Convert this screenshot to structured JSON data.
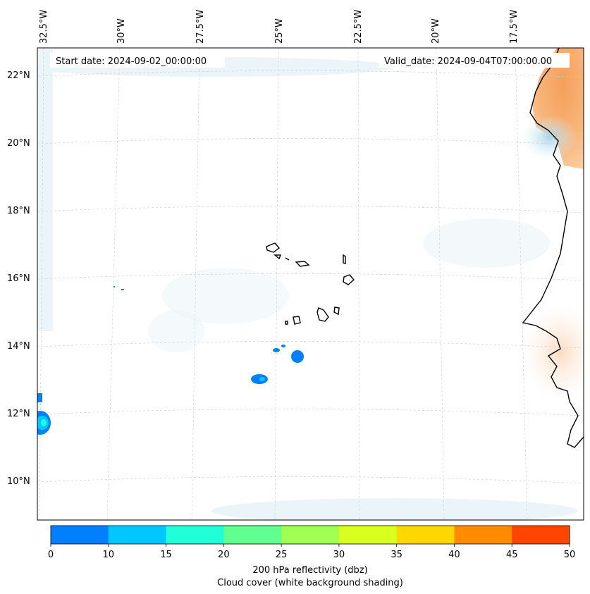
{
  "header": {
    "start_date": "Start date: 2024-09-02_00:00:00",
    "valid_date": "Valid_date: 2024-09-04T07:00:00.00"
  },
  "map": {
    "lon_labels": [
      "32.5°W",
      "30°W",
      "27.5°W",
      "25°W",
      "22.5°W",
      "20°W",
      "17.5°W"
    ],
    "lat_labels": [
      "22°N",
      "20°N",
      "18°N",
      "16°N",
      "14°N",
      "12°N",
      "10°N"
    ],
    "gridlines": "dashed"
  },
  "colorbar": {
    "colors": [
      "#0080ff",
      "#00c8ff",
      "#20ffd8",
      "#60ff90",
      "#a0ff50",
      "#d8ff20",
      "#ffd700",
      "#ff8c00",
      "#ff4500"
    ],
    "ticks": [
      "0",
      "10",
      "15",
      "20",
      "25",
      "30",
      "35",
      "40",
      "45",
      "50"
    ],
    "label_line1": "200 hPa reflectivity (dbz)",
    "label_line2": "Cloud cover (white background shading)"
  }
}
